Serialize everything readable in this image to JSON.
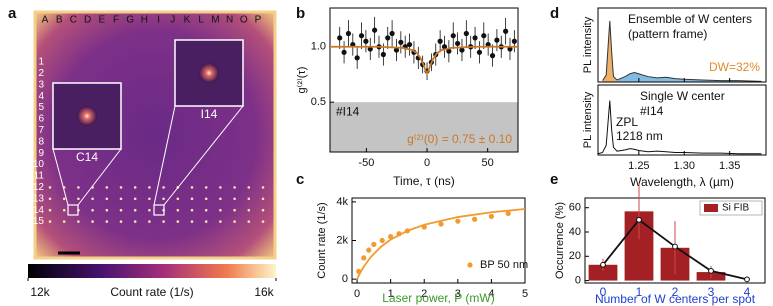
{
  "chart_data": [
    {
      "type": "heatmap",
      "label": "a",
      "columns": [
        "A",
        "B",
        "C",
        "D",
        "E",
        "F",
        "G",
        "H",
        "I",
        "J",
        "K",
        "L",
        "M",
        "N",
        "O",
        "P"
      ],
      "rows": [
        "1",
        "2",
        "3",
        "4",
        "5",
        "6",
        "7",
        "8",
        "9",
        "10",
        "11",
        "12",
        "13",
        "14",
        "15"
      ],
      "insets": [
        "C14",
        "I14"
      ],
      "colorbar_label": "Count rate (1/s)",
      "zlim": [
        12000,
        16000
      ],
      "zticks": [
        {
          "value": 12000,
          "label": "12k"
        },
        {
          "value": 16000,
          "label": "16k"
        }
      ]
    },
    {
      "type": "scatter",
      "label": "b",
      "xlabel": "Time, τ (ns)",
      "ylabel": "g⁽²⁾(τ)",
      "xlim": [
        -80,
        75
      ],
      "xticks": [
        -50,
        0,
        50
      ],
      "ylim": [
        0.05,
        1.35
      ],
      "yticks": [
        0.5,
        {
          "value": 1,
          "label": "1.0"
        }
      ],
      "shade_below": 0.5,
      "annotation": "#I14",
      "result": "g⁽²⁾(0) = 0.75 ± 0.10",
      "series": [
        {
          "color": "#111111",
          "x": [
            -72,
            -68.4,
            -64.8,
            -61.2,
            -57.6,
            -54,
            -50.4,
            -46.8,
            -43.2,
            -39.6,
            -36,
            -32.4,
            -28.8,
            -25.2,
            -21.6,
            -18,
            -14.4,
            -10.8,
            -7.2,
            -3.6,
            0,
            3.6,
            7.2,
            10.8,
            14.4,
            18,
            21.6,
            25.2,
            28.8,
            32.4,
            36,
            39.6,
            43.2,
            46.8,
            50.4,
            54,
            57.6,
            61.2,
            64.8,
            68.4,
            72
          ],
          "values": [
            1.08,
            0.95,
            1.12,
            1.02,
            0.9,
            1.1,
            1.05,
            0.98,
            1.15,
            1.0,
            0.93,
            1.08,
            1.12,
            0.97,
            1.04,
            1.0,
            1.02,
            0.95,
            0.9,
            0.84,
            0.78,
            0.86,
            0.93,
            1.05,
            1.0,
            0.96,
            1.1,
            1.03,
            0.97,
            1.12,
            1.0,
            1.08,
            0.95,
            1.1,
            1.02,
            0.92,
            1.06,
            1.0,
            1.14,
            0.98,
            1.05
          ],
          "errors": [
            0.1,
            0.1,
            0.12,
            0.1,
            0.1,
            0.12,
            0.1,
            0.1,
            0.12,
            0.1,
            0.1,
            0.1,
            0.12,
            0.1,
            0.1,
            0.1,
            0.1,
            0.1,
            0.1,
            0.08,
            0.08,
            0.08,
            0.1,
            0.1,
            0.1,
            0.1,
            0.12,
            0.1,
            0.1,
            0.12,
            0.1,
            0.1,
            0.1,
            0.12,
            0.1,
            0.1,
            0.1,
            0.1,
            0.12,
            0.1,
            0.1
          ]
        },
        {
          "color": "#c8782a",
          "style": "line",
          "x": [
            -80,
            -60,
            -40,
            -20,
            -12,
            -8,
            -5,
            -3,
            -1,
            0,
            1,
            3,
            5,
            8,
            12,
            20,
            40,
            60,
            75
          ],
          "values": [
            1.0,
            1.0,
            1.0,
            0.99,
            0.97,
            0.94,
            0.89,
            0.84,
            0.78,
            0.76,
            0.78,
            0.84,
            0.89,
            0.94,
            0.97,
            0.99,
            1.0,
            1.0,
            1.0
          ]
        }
      ]
    },
    {
      "type": "scatter",
      "label": "c",
      "xlabel": "Laser power, P (mW)",
      "ylabel": "Count rate (1/s)",
      "xlabel_color": "#3a9a2a",
      "xlim": [
        -0.15,
        5
      ],
      "xticks": [
        0,
        1,
        2,
        3,
        4,
        5
      ],
      "ylim": [
        -200,
        4200
      ],
      "yticks": [
        0,
        {
          "value": 2000,
          "label": "2k"
        },
        {
          "value": 4000,
          "label": "4k"
        }
      ],
      "series": [
        {
          "name": "BP 50 nm",
          "color": "#f39a2e",
          "x": [
            0.05,
            0.2,
            0.35,
            0.5,
            0.75,
            1.0,
            1.25,
            1.5,
            2.0,
            2.5,
            3.0,
            3.5,
            4.0,
            4.5
          ],
          "values": [
            400,
            1100,
            1500,
            1800,
            2000,
            2200,
            2350,
            2500,
            2700,
            2850,
            3000,
            3100,
            3250,
            3400
          ]
        },
        {
          "color": "#f39a2e",
          "style": "line",
          "x": [
            0,
            0.1,
            0.2,
            0.4,
            0.7,
            1,
            1.5,
            2,
            3,
            4,
            5
          ],
          "values": [
            0,
            346,
            643,
            1125,
            1658,
            2045,
            2500,
            2813,
            3214,
            3462,
            3629
          ]
        }
      ]
    },
    {
      "type": "area",
      "label": "d",
      "xlabel": "Wavelength, λ (µm)",
      "xlim": [
        1.205,
        1.39
      ],
      "xticks": [
        1.25,
        {
          "value": 1.3,
          "label": "1.30"
        },
        1.35
      ],
      "ylim": [
        0,
        1
      ],
      "subplots": [
        {
          "ylabel": "PL intensity",
          "title_lines": [
            "Ensemble of W centers",
            "(pattern frame)"
          ],
          "note": "DW=32%",
          "note_color": "#e08a2a",
          "series": [
            {
              "color": "#e8953a",
              "x": [
                1.21,
                1.214,
                1.216,
                1.218,
                1.22,
                1.222,
                1.226
              ],
              "values": [
                0.02,
                0.1,
                0.5,
                0.9,
                0.45,
                0.08,
                0.03
              ]
            },
            {
              "color": "#5aa6d8",
              "x": [
                1.226,
                1.235,
                1.24,
                1.245,
                1.25,
                1.26,
                1.27,
                1.28,
                1.29,
                1.3,
                1.32,
                1.34,
                1.36,
                1.385
              ],
              "values": [
                0.03,
                0.08,
                0.12,
                0.14,
                0.12,
                0.08,
                0.06,
                0.07,
                0.05,
                0.04,
                0.03,
                0.02,
                0.02,
                0.01
              ]
            }
          ]
        },
        {
          "ylabel": "PL intensity",
          "title_lines": [
            "Single W center",
            "#I14"
          ],
          "peak_label": [
            "ZPL",
            "1218 nm"
          ],
          "series": [
            {
              "color": "#111111",
              "x": [
                1.205,
                1.21,
                1.214,
                1.216,
                1.218,
                1.22,
                1.222,
                1.226,
                1.235,
                1.24,
                1.245,
                1.25,
                1.26,
                1.27,
                1.28,
                1.29,
                1.3,
                1.32,
                1.34,
                1.36,
                1.385
              ],
              "values": [
                0.02,
                0.04,
                0.15,
                0.5,
                0.85,
                0.4,
                0.12,
                0.06,
                0.08,
                0.1,
                0.09,
                0.07,
                0.05,
                0.06,
                0.05,
                0.04,
                0.04,
                0.03,
                0.03,
                0.02,
                0.02
              ]
            }
          ]
        }
      ]
    },
    {
      "type": "bar",
      "label": "e",
      "categories": [
        "0",
        "1",
        "2",
        "3",
        "4"
      ],
      "axis_color": "#1f3fd0",
      "xlabel": "Number of W centers per spot",
      "ylabel": "Occurrence (%)",
      "ylim": [
        -2,
        68
      ],
      "yticks": [
        0,
        20,
        40,
        60
      ],
      "series": [
        {
          "name": "Si FIB",
          "color": "#a32124",
          "values": [
            13,
            57,
            27,
            7,
            0
          ],
          "errors": [
            5,
            23,
            22,
            5,
            0
          ]
        },
        {
          "color": "#111111",
          "style": "line",
          "values": [
            13,
            50,
            28,
            8,
            1
          ]
        }
      ]
    }
  ]
}
